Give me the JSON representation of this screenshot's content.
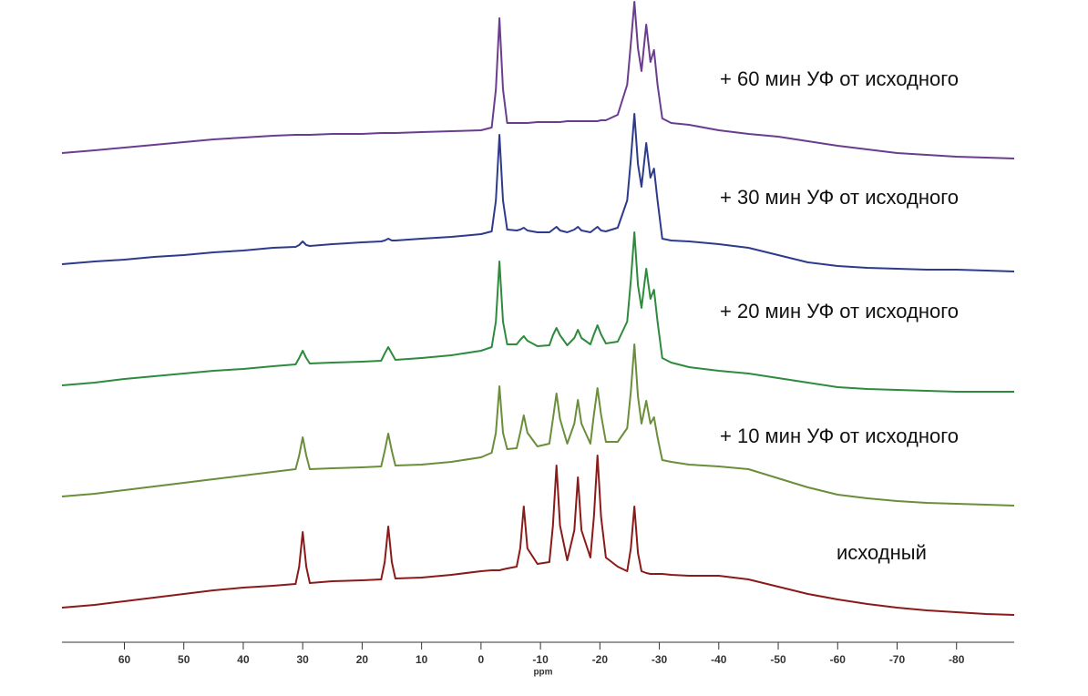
{
  "chart_data": {
    "type": "line",
    "xlabel": "ppm",
    "x": [
      70.5,
      65,
      60,
      55,
      50,
      45,
      40,
      35,
      31.2,
      30.6,
      30,
      29.4,
      28.8,
      25,
      20,
      16.8,
      16.2,
      15.6,
      15,
      14.4,
      10,
      5,
      0,
      -1.8,
      -2.5,
      -3.1,
      -3.7,
      -4.4,
      -6,
      -6.6,
      -7.2,
      -7.8,
      -9.5,
      -11.5,
      -12.1,
      -12.7,
      -13.3,
      -14.5,
      -15.7,
      -16.3,
      -16.9,
      -18.4,
      -19.0,
      -19.6,
      -20.2,
      -21,
      -23,
      -24.6,
      -25.2,
      -25.8,
      -26.4,
      -27.0,
      -27.8,
      -28.5,
      -29.1,
      -29.7,
      -30.5,
      -32,
      -35,
      -40,
      -45,
      -50,
      -55,
      -60,
      -65,
      -70,
      -75,
      -80,
      -85,
      -89.7
    ],
    "xlim": [
      70.5,
      -89.7
    ],
    "xticks": [
      60,
      50,
      40,
      30,
      20,
      10,
      0,
      -10,
      -20,
      -30,
      -40,
      -50,
      -60,
      -70,
      -80
    ],
    "series": [
      {
        "name": "исходный",
        "color": "#8b1a1a",
        "values": [
          0,
          3,
          7,
          11,
          15,
          19,
          22,
          24,
          26,
          45,
          83,
          45,
          27,
          29,
          30,
          31,
          50,
          89,
          50,
          32,
          33,
          36,
          40,
          41,
          41,
          41,
          42,
          43,
          45,
          65,
          111,
          65,
          48,
          50,
          90,
          156,
          90,
          52,
          85,
          143,
          85,
          55,
          100,
          167,
          100,
          55,
          45,
          40,
          65,
          111,
          60,
          40,
          38,
          37,
          37,
          37,
          37,
          36,
          35,
          35,
          31,
          23,
          15,
          9,
          4,
          0,
          -3,
          -5,
          -7,
          -8
        ]
      },
      {
        "name": "+ 10 мин УФ от исходного",
        "color": "#6b8e3a",
        "values": [
          0,
          3,
          7,
          11,
          15,
          19,
          23,
          27,
          30,
          45,
          65,
          45,
          30,
          31,
          32,
          33,
          50,
          69,
          50,
          34,
          35,
          38,
          43,
          48,
          70,
          121,
          70,
          52,
          53,
          70,
          89,
          70,
          55,
          58,
          85,
          113,
          85,
          58,
          80,
          106,
          80,
          58,
          90,
          119,
          90,
          60,
          60,
          75,
          115,
          167,
          110,
          80,
          105,
          80,
          87,
          65,
          40,
          38,
          35,
          33,
          30,
          20,
          10,
          2,
          -2,
          -5,
          -7,
          -8,
          -9,
          -10
        ]
      },
      {
        "name": "+ 20 мин УФ от исходного",
        "color": "#2e8b3e",
        "values": [
          0,
          3,
          7,
          10,
          13,
          16,
          18,
          21,
          23,
          30,
          38,
          30,
          24,
          25,
          26,
          27,
          35,
          42,
          35,
          28,
          30,
          33,
          38,
          42,
          70,
          136,
          70,
          45,
          45,
          50,
          54,
          49,
          43,
          44,
          55,
          63,
          55,
          44,
          52,
          61,
          52,
          45,
          56,
          66,
          56,
          46,
          48,
          70,
          115,
          168,
          110,
          85,
          128,
          95,
          105,
          70,
          30,
          25,
          20,
          16,
          13,
          8,
          3,
          -2,
          -4,
          -5,
          -6,
          -7,
          -7,
          -7
        ]
      },
      {
        "name": "+ 30 мин УФ от исходного",
        "color": "#2e3a8c",
        "values": [
          0,
          3,
          5,
          8,
          10,
          13,
          15,
          18,
          19,
          21,
          25,
          21,
          20,
          22,
          24,
          25,
          26,
          28,
          26,
          26,
          28,
          30,
          33,
          36,
          70,
          142,
          70,
          38,
          37,
          38,
          40,
          37,
          35,
          35,
          38,
          41,
          37,
          35,
          38,
          41,
          37,
          35,
          38,
          41,
          37,
          36,
          40,
          70,
          115,
          165,
          110,
          85,
          133,
          95,
          105,
          70,
          28,
          26,
          25,
          22,
          18,
          10,
          2,
          -2,
          -4,
          -5,
          -6,
          -6,
          -7,
          -8
        ]
      },
      {
        "name": "+ 60 мин УФ от исходного",
        "color": "#6a3d8f",
        "values": [
          0,
          3,
          6,
          9,
          12,
          15,
          17,
          19,
          20,
          20,
          20,
          20,
          20,
          21,
          21,
          22,
          22,
          22,
          22,
          22,
          23,
          24,
          25,
          28,
          70,
          148,
          70,
          33,
          33,
          33,
          33,
          33,
          34,
          34,
          34,
          34,
          34,
          35,
          35,
          35,
          35,
          35,
          35,
          35,
          36,
          36,
          42,
          75,
          120,
          166,
          115,
          90,
          141,
          100,
          113,
          75,
          38,
          33,
          31,
          25,
          21,
          18,
          13,
          8,
          4,
          0,
          -2,
          -4,
          -5,
          -6
        ]
      }
    ]
  }
}
